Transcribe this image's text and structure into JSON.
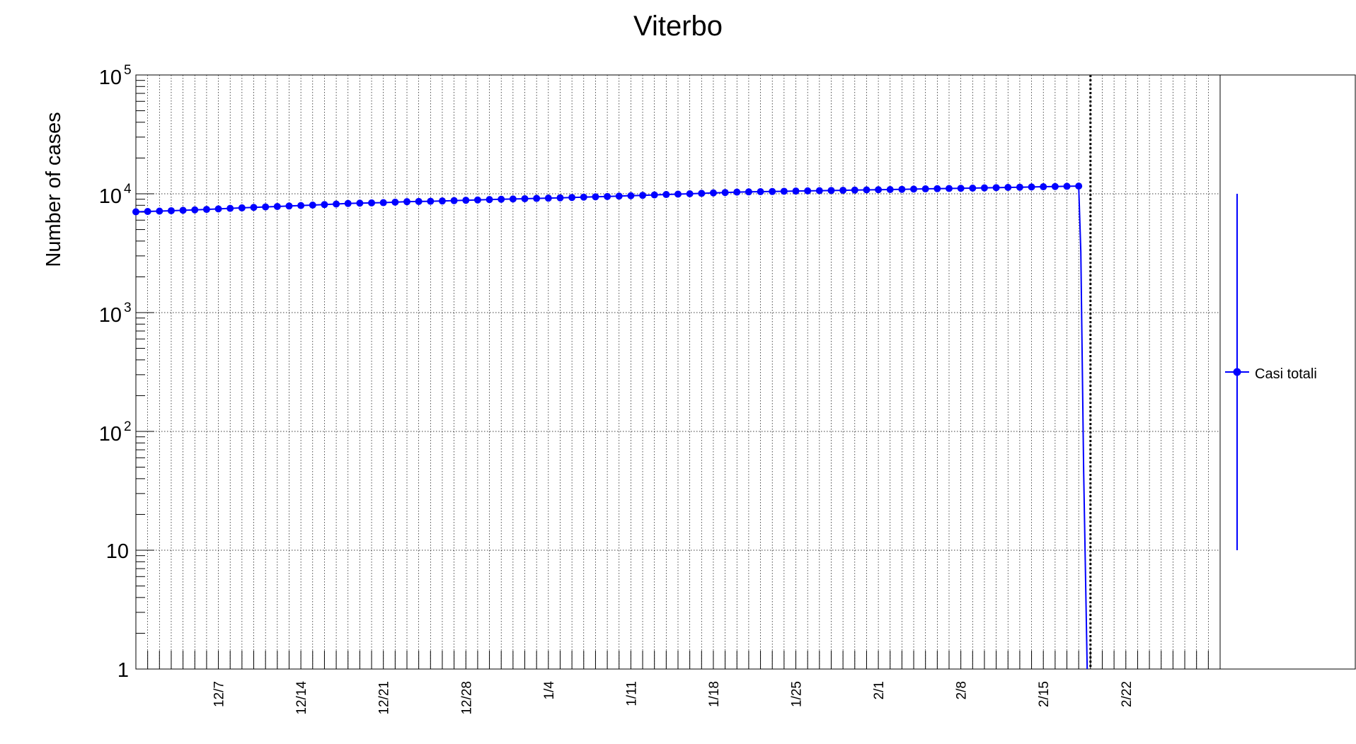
{
  "chart_data": {
    "type": "line",
    "title": "Viterbo",
    "xlabel": "",
    "ylabel": "Number of cases",
    "yscale": "log",
    "ylim": [
      1,
      100000
    ],
    "y_ticks": [
      {
        "value": 1,
        "base": "1",
        "exp": ""
      },
      {
        "value": 10,
        "base": "10",
        "exp": ""
      },
      {
        "value": 100,
        "base": "10",
        "exp": "2"
      },
      {
        "value": 1000,
        "base": "10",
        "exp": "3"
      },
      {
        "value": 10000,
        "base": "10",
        "exp": "4"
      },
      {
        "value": 100000,
        "base": "10",
        "exp": "5"
      }
    ],
    "xlim": [
      "11/30",
      "3/2"
    ],
    "x_tick_labels": [
      "12/7",
      "12/14",
      "12/21",
      "12/28",
      "1/4",
      "1/11",
      "1/18",
      "1/25",
      "2/1",
      "2/8",
      "2/15",
      "2/22"
    ],
    "grid": true,
    "marker_line_date": "2/19",
    "legend": {
      "position": "right",
      "entries": [
        "Casi totali"
      ]
    },
    "legend_error_bar": [
      10,
      10000
    ],
    "series": [
      {
        "name": "Casi totali",
        "color": "#0000ff",
        "start_date": "11/30",
        "values": [
          7050,
          7100,
          7150,
          7200,
          7260,
          7320,
          7390,
          7460,
          7540,
          7610,
          7680,
          7750,
          7820,
          7890,
          7960,
          8030,
          8110,
          8200,
          8290,
          8340,
          8380,
          8420,
          8500,
          8580,
          8620,
          8650,
          8700,
          8760,
          8820,
          8870,
          8940,
          8990,
          9040,
          9090,
          9140,
          9190,
          9250,
          9310,
          9370,
          9430,
          9490,
          9560,
          9630,
          9700,
          9780,
          9860,
          9930,
          10000,
          10080,
          10170,
          10250,
          10330,
          10380,
          10420,
          10450,
          10500,
          10540,
          10580,
          10620,
          10660,
          10700,
          10740,
          10780,
          10820,
          10860,
          10900,
          10950,
          11000,
          11040,
          11080,
          11120,
          11160,
          11210,
          11260,
          11310,
          11360,
          11410,
          11460,
          11510,
          11560,
          11610
        ]
      }
    ]
  },
  "colors": {
    "series": "#0000ff",
    "axis": "#000000",
    "grid": "#000000"
  }
}
